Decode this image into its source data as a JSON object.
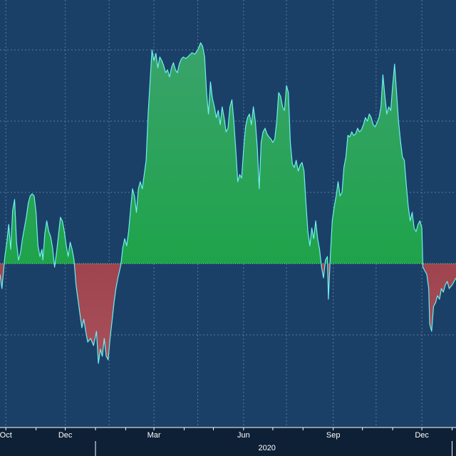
{
  "colors": {
    "background": "#1b4068",
    "axis_band": "#0d2036",
    "positive_fill_top": "#3aa36c",
    "positive_fill_bottom": "#12a33a",
    "negative_fill_top": "#8a2a38",
    "negative_fill_bottom": "#a8505a",
    "series_line": "#6ef0f0",
    "zero_line": "#7fe08a",
    "grid": "#6f8aa8"
  },
  "chart_data": {
    "type": "area",
    "title": "",
    "xlabel": "",
    "ylabel": "",
    "x_range": [
      "2019-09-25",
      "2021-01-05"
    ],
    "x_ticks": [
      {
        "date": "2019-10-01",
        "label": "Oct"
      },
      {
        "date": "2019-12-01",
        "label": "Dec"
      },
      {
        "date": "2020-03-01",
        "label": "Mar"
      },
      {
        "date": "2020-06-01",
        "label": "Jun"
      },
      {
        "date": "2020-09-01",
        "label": "Sep"
      },
      {
        "date": "2020-12-01",
        "label": "Dec"
      }
    ],
    "x_gridlines": [
      "2019-10-01",
      "2019-12-01",
      "2020-01-15",
      "2020-03-01",
      "2020-04-15",
      "2020-06-01",
      "2020-07-15",
      "2020-09-01",
      "2020-10-15",
      "2020-12-01"
    ],
    "year_labels": [
      {
        "date": "2020-06-25",
        "label": "2020"
      }
    ],
    "year_separators": [
      "2020-01-01",
      "2021-01-01"
    ],
    "y_range": [
      -2.3,
      3.7
    ],
    "y_gridlines": [
      -1,
      0,
      1,
      2,
      3
    ],
    "y_tick_labels_visible": false,
    "baseline": 0,
    "points": [
      [
        "2019-09-25",
        -0.15
      ],
      [
        "2019-09-27",
        -0.35
      ],
      [
        "2019-09-30",
        0.1
      ],
      [
        "2019-10-02",
        0.3
      ],
      [
        "2019-10-04",
        0.55
      ],
      [
        "2019-10-06",
        0.2
      ],
      [
        "2019-10-08",
        0.75
      ],
      [
        "2019-10-10",
        0.9
      ],
      [
        "2019-10-12",
        0.3
      ],
      [
        "2019-10-14",
        0.05
      ],
      [
        "2019-10-16",
        0.15
      ],
      [
        "2019-10-18",
        0.35
      ],
      [
        "2019-10-20",
        0.5
      ],
      [
        "2019-10-22",
        0.65
      ],
      [
        "2019-10-24",
        0.85
      ],
      [
        "2019-10-26",
        0.95
      ],
      [
        "2019-10-28",
        0.98
      ],
      [
        "2019-10-30",
        0.95
      ],
      [
        "2019-11-01",
        0.72
      ],
      [
        "2019-11-03",
        0.25
      ],
      [
        "2019-11-05",
        0.1
      ],
      [
        "2019-11-07",
        0.2
      ],
      [
        "2019-11-08",
        0.05
      ],
      [
        "2019-11-10",
        0.42
      ],
      [
        "2019-11-12",
        0.6
      ],
      [
        "2019-11-14",
        0.45
      ],
      [
        "2019-11-16",
        0.38
      ],
      [
        "2019-11-18",
        0.22
      ],
      [
        "2019-11-20",
        -0.05
      ],
      [
        "2019-11-22",
        0.15
      ],
      [
        "2019-11-24",
        0.4
      ],
      [
        "2019-11-26",
        0.65
      ],
      [
        "2019-11-28",
        0.6
      ],
      [
        "2019-11-30",
        0.45
      ],
      [
        "2019-12-02",
        0.25
      ],
      [
        "2019-12-04",
        0.1
      ],
      [
        "2019-12-06",
        0.3
      ],
      [
        "2019-12-08",
        0.2
      ],
      [
        "2019-12-10",
        0.05
      ],
      [
        "2019-12-12",
        -0.3
      ],
      [
        "2019-12-14",
        -0.5
      ],
      [
        "2019-12-16",
        -0.7
      ],
      [
        "2019-12-18",
        -0.9
      ],
      [
        "2019-12-20",
        -0.78
      ],
      [
        "2019-12-22",
        -0.95
      ],
      [
        "2019-12-24",
        -1.1
      ],
      [
        "2019-12-27",
        -1.05
      ],
      [
        "2019-12-30",
        -1.15
      ],
      [
        "2020-01-02",
        -0.95
      ],
      [
        "2020-01-04",
        -1.4
      ],
      [
        "2020-01-06",
        -1.2
      ],
      [
        "2020-01-08",
        -1.3
      ],
      [
        "2020-01-10",
        -1.05
      ],
      [
        "2020-01-12",
        -1.3
      ],
      [
        "2020-01-14",
        -1.35
      ],
      [
        "2020-01-16",
        -1.05
      ],
      [
        "2020-01-18",
        -0.8
      ],
      [
        "2020-01-20",
        -0.55
      ],
      [
        "2020-01-22",
        -0.35
      ],
      [
        "2020-01-24",
        -0.2
      ],
      [
        "2020-01-27",
        -0.02
      ],
      [
        "2020-01-29",
        0.22
      ],
      [
        "2020-01-31",
        0.35
      ],
      [
        "2020-02-02",
        0.25
      ],
      [
        "2020-02-04",
        0.45
      ],
      [
        "2020-02-06",
        0.75
      ],
      [
        "2020-02-08",
        1.05
      ],
      [
        "2020-02-10",
        0.95
      ],
      [
        "2020-02-12",
        0.72
      ],
      [
        "2020-02-14",
        1.05
      ],
      [
        "2020-02-16",
        1.15
      ],
      [
        "2020-02-18",
        1.05
      ],
      [
        "2020-02-20",
        1.25
      ],
      [
        "2020-02-22",
        1.45
      ],
      [
        "2020-02-24",
        2.1
      ],
      [
        "2020-02-26",
        2.55
      ],
      [
        "2020-02-28",
        3.0
      ],
      [
        "2020-03-01",
        2.85
      ],
      [
        "2020-03-03",
        2.95
      ],
      [
        "2020-03-05",
        2.75
      ],
      [
        "2020-03-07",
        2.9
      ],
      [
        "2020-03-09",
        2.85
      ],
      [
        "2020-03-11",
        2.78
      ],
      [
        "2020-03-13",
        2.68
      ],
      [
        "2020-03-15",
        2.72
      ],
      [
        "2020-03-17",
        2.62
      ],
      [
        "2020-03-19",
        2.75
      ],
      [
        "2020-03-21",
        2.82
      ],
      [
        "2020-03-23",
        2.72
      ],
      [
        "2020-03-25",
        2.68
      ],
      [
        "2020-03-27",
        2.8
      ],
      [
        "2020-03-29",
        2.87
      ],
      [
        "2020-03-31",
        2.9
      ],
      [
        "2020-04-03",
        2.88
      ],
      [
        "2020-04-06",
        2.92
      ],
      [
        "2020-04-09",
        2.96
      ],
      [
        "2020-04-12",
        2.94
      ],
      [
        "2020-04-15",
        3.0
      ],
      [
        "2020-04-18",
        3.1
      ],
      [
        "2020-04-20",
        3.05
      ],
      [
        "2020-04-22",
        2.9
      ],
      [
        "2020-04-24",
        2.4
      ],
      [
        "2020-04-26",
        2.1
      ],
      [
        "2020-04-28",
        2.55
      ],
      [
        "2020-04-30",
        2.32
      ],
      [
        "2020-05-02",
        2.2
      ],
      [
        "2020-05-04",
        2.05
      ],
      [
        "2020-05-06",
        2.15
      ],
      [
        "2020-05-08",
        1.95
      ],
      [
        "2020-05-10",
        2.2
      ],
      [
        "2020-05-12",
        2.05
      ],
      [
        "2020-05-14",
        1.85
      ],
      [
        "2020-05-16",
        1.9
      ],
      [
        "2020-05-18",
        2.2
      ],
      [
        "2020-05-20",
        2.3
      ],
      [
        "2020-05-22",
        2.0
      ],
      [
        "2020-05-24",
        1.6
      ],
      [
        "2020-05-26",
        1.15
      ],
      [
        "2020-05-28",
        1.25
      ],
      [
        "2020-05-30",
        1.2
      ],
      [
        "2020-06-01",
        1.6
      ],
      [
        "2020-06-03",
        1.92
      ],
      [
        "2020-06-05",
        2.05
      ],
      [
        "2020-06-07",
        2.1
      ],
      [
        "2020-06-09",
        1.95
      ],
      [
        "2020-06-11",
        2.2
      ],
      [
        "2020-06-13",
        2.0
      ],
      [
        "2020-06-15",
        1.65
      ],
      [
        "2020-06-17",
        1.05
      ],
      [
        "2020-06-19",
        1.7
      ],
      [
        "2020-06-21",
        1.85
      ],
      [
        "2020-06-23",
        1.9
      ],
      [
        "2020-06-25",
        1.82
      ],
      [
        "2020-06-27",
        1.78
      ],
      [
        "2020-06-29",
        1.75
      ],
      [
        "2020-07-01",
        1.7
      ],
      [
        "2020-07-03",
        1.75
      ],
      [
        "2020-07-05",
        2.0
      ],
      [
        "2020-07-07",
        2.4
      ],
      [
        "2020-07-09",
        2.35
      ],
      [
        "2020-07-11",
        2.2
      ],
      [
        "2020-07-13",
        2.15
      ],
      [
        "2020-07-15",
        2.5
      ],
      [
        "2020-07-17",
        2.4
      ],
      [
        "2020-07-19",
        1.7
      ],
      [
        "2020-07-21",
        1.4
      ],
      [
        "2020-07-23",
        1.35
      ],
      [
        "2020-07-25",
        1.45
      ],
      [
        "2020-07-27",
        1.3
      ],
      [
        "2020-07-29",
        1.38
      ],
      [
        "2020-07-31",
        1.42
      ],
      [
        "2020-08-02",
        1.3
      ],
      [
        "2020-08-04",
        0.85
      ],
      [
        "2020-08-06",
        0.45
      ],
      [
        "2020-08-08",
        0.25
      ],
      [
        "2020-08-10",
        0.5
      ],
      [
        "2020-08-12",
        0.35
      ],
      [
        "2020-08-14",
        0.6
      ],
      [
        "2020-08-16",
        0.35
      ],
      [
        "2020-08-18",
        0.2
      ],
      [
        "2020-08-20",
        -0.05
      ],
      [
        "2020-08-22",
        -0.2
      ],
      [
        "2020-08-24",
        0.05
      ],
      [
        "2020-08-26",
        0.1
      ],
      [
        "2020-08-27",
        -0.5
      ],
      [
        "2020-08-29",
        0.1
      ],
      [
        "2020-08-31",
        0.6
      ],
      [
        "2020-09-02",
        0.8
      ],
      [
        "2020-09-04",
        0.95
      ],
      [
        "2020-09-06",
        1.15
      ],
      [
        "2020-09-08",
        0.95
      ],
      [
        "2020-09-10",
        1.0
      ],
      [
        "2020-09-12",
        1.35
      ],
      [
        "2020-09-14",
        1.5
      ],
      [
        "2020-09-16",
        1.8
      ],
      [
        "2020-09-18",
        1.78
      ],
      [
        "2020-09-20",
        1.85
      ],
      [
        "2020-09-22",
        1.8
      ],
      [
        "2020-09-24",
        1.82
      ],
      [
        "2020-09-26",
        1.9
      ],
      [
        "2020-09-28",
        1.85
      ],
      [
        "2020-09-30",
        1.88
      ],
      [
        "2020-10-02",
        1.95
      ],
      [
        "2020-10-04",
        2.05
      ],
      [
        "2020-10-06",
        2.0
      ],
      [
        "2020-10-08",
        2.1
      ],
      [
        "2020-10-10",
        2.05
      ],
      [
        "2020-10-12",
        1.95
      ],
      [
        "2020-10-14",
        1.92
      ],
      [
        "2020-10-16",
        1.98
      ],
      [
        "2020-10-18",
        2.05
      ],
      [
        "2020-10-20",
        2.2
      ],
      [
        "2020-10-22",
        2.65
      ],
      [
        "2020-10-24",
        2.35
      ],
      [
        "2020-10-26",
        2.1
      ],
      [
        "2020-10-28",
        2.2
      ],
      [
        "2020-10-30",
        2.15
      ],
      [
        "2020-11-01",
        2.5
      ],
      [
        "2020-11-03",
        2.8
      ],
      [
        "2020-11-05",
        2.4
      ],
      [
        "2020-11-07",
        2.0
      ],
      [
        "2020-11-09",
        1.72
      ],
      [
        "2020-11-11",
        1.5
      ],
      [
        "2020-11-13",
        1.45
      ],
      [
        "2020-11-15",
        1.1
      ],
      [
        "2020-11-17",
        0.8
      ],
      [
        "2020-11-19",
        0.6
      ],
      [
        "2020-11-21",
        0.72
      ],
      [
        "2020-11-23",
        0.5
      ],
      [
        "2020-11-25",
        0.45
      ],
      [
        "2020-11-27",
        0.55
      ],
      [
        "2020-11-29",
        0.6
      ],
      [
        "2020-12-01",
        0.5
      ],
      [
        "2020-12-02",
        -0.05
      ],
      [
        "2020-12-04",
        -0.1
      ],
      [
        "2020-12-06",
        -0.15
      ],
      [
        "2020-12-08",
        -0.35
      ],
      [
        "2020-12-09",
        -0.85
      ],
      [
        "2020-12-11",
        -0.95
      ],
      [
        "2020-12-13",
        -0.6
      ],
      [
        "2020-12-15",
        -0.55
      ],
      [
        "2020-12-17",
        -0.45
      ],
      [
        "2020-12-19",
        -0.5
      ],
      [
        "2020-12-21",
        -0.35
      ],
      [
        "2020-12-23",
        -0.4
      ],
      [
        "2020-12-25",
        -0.3
      ],
      [
        "2020-12-27",
        -0.25
      ],
      [
        "2020-12-29",
        -0.35
      ],
      [
        "2021-01-01",
        -0.3
      ],
      [
        "2021-01-05",
        -0.2
      ]
    ]
  }
}
